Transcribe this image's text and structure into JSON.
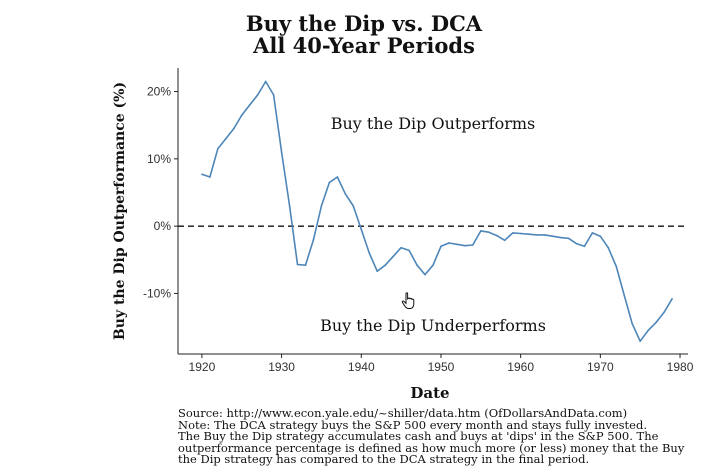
{
  "chart_data": {
    "type": "line",
    "title": [
      "Buy the Dip vs. DCA",
      "All 40-Year Periods"
    ],
    "xlabel": "Date",
    "ylabel": "Buy the Dip Outperformance (%)",
    "xlim": [
      1917,
      1981
    ],
    "ylim": [
      -0.19,
      0.235
    ],
    "x_ticks": [
      1920,
      1930,
      1940,
      1950,
      1960,
      1970,
      1980
    ],
    "x_tick_labels": [
      "1920",
      "1930",
      "1940",
      "1950",
      "1960",
      "1970",
      "1980"
    ],
    "y_ticks": [
      -0.1,
      0.0,
      0.1,
      0.2
    ],
    "y_tick_labels": [
      "-10%",
      "0%",
      "10%",
      "20%"
    ],
    "reference_line": {
      "y": 0,
      "style": "dashed"
    },
    "annotations": [
      {
        "text": "Buy the Dip Outperforms",
        "x": 1949,
        "y": 0.15
      },
      {
        "text": "Buy the Dip Underperforms",
        "x": 1949,
        "y": -0.15
      }
    ],
    "line_color": "#4d86b8",
    "grid": false,
    "series": [
      {
        "x": [
          1920,
          1921,
          1922,
          1923,
          1924,
          1925,
          1926,
          1927,
          1928,
          1929,
          1930,
          1931,
          1932,
          1933,
          1934,
          1935,
          1936,
          1937,
          1938,
          1939,
          1940,
          1941,
          1942,
          1943,
          1944,
          1945,
          1946,
          1947,
          1948,
          1949,
          1950,
          1951,
          1952,
          1953,
          1954,
          1955,
          1956,
          1957,
          1958,
          1959,
          1960,
          1961,
          1962,
          1963,
          1964,
          1965,
          1966,
          1967,
          1968,
          1969,
          1970,
          1971,
          1972,
          1973,
          1974,
          1975,
          1976,
          1977,
          1978,
          1979
        ],
        "values": [
          0.077,
          0.073,
          0.115,
          0.13,
          0.145,
          0.165,
          0.18,
          0.195,
          0.215,
          0.195,
          0.11,
          0.03,
          -0.057,
          -0.058,
          -0.02,
          0.03,
          0.065,
          0.073,
          0.048,
          0.03,
          -0.005,
          -0.04,
          -0.067,
          -0.058,
          -0.045,
          -0.032,
          -0.036,
          -0.058,
          -0.072,
          -0.058,
          -0.03,
          -0.025,
          -0.027,
          -0.029,
          -0.028,
          -0.007,
          -0.009,
          -0.014,
          -0.021,
          -0.01,
          -0.011,
          -0.012,
          -0.013,
          -0.013,
          -0.015,
          -0.017,
          -0.018,
          -0.026,
          -0.03,
          -0.01,
          -0.015,
          -0.032,
          -0.06,
          -0.103,
          -0.145,
          -0.171,
          -0.155,
          -0.143,
          -0.128,
          -0.108
        ]
      }
    ]
  },
  "footnote": [
    "Source:  http://www.econ.yale.edu/~shiller/data.htm (OfDollarsAndData.com)",
    "Note: The DCA strategy buys the S&P 500 every month and stays fully invested.",
    "The Buy the Dip strategy accumulates cash and buys at 'dips' in the S&P 500. The",
    "outperformance percentage is defined as how much more (or less) money that the Buy",
    "the Dip strategy has compared to the DCA strategy in the final period."
  ],
  "cursor": {
    "icon": "hand-pointer-icon"
  }
}
